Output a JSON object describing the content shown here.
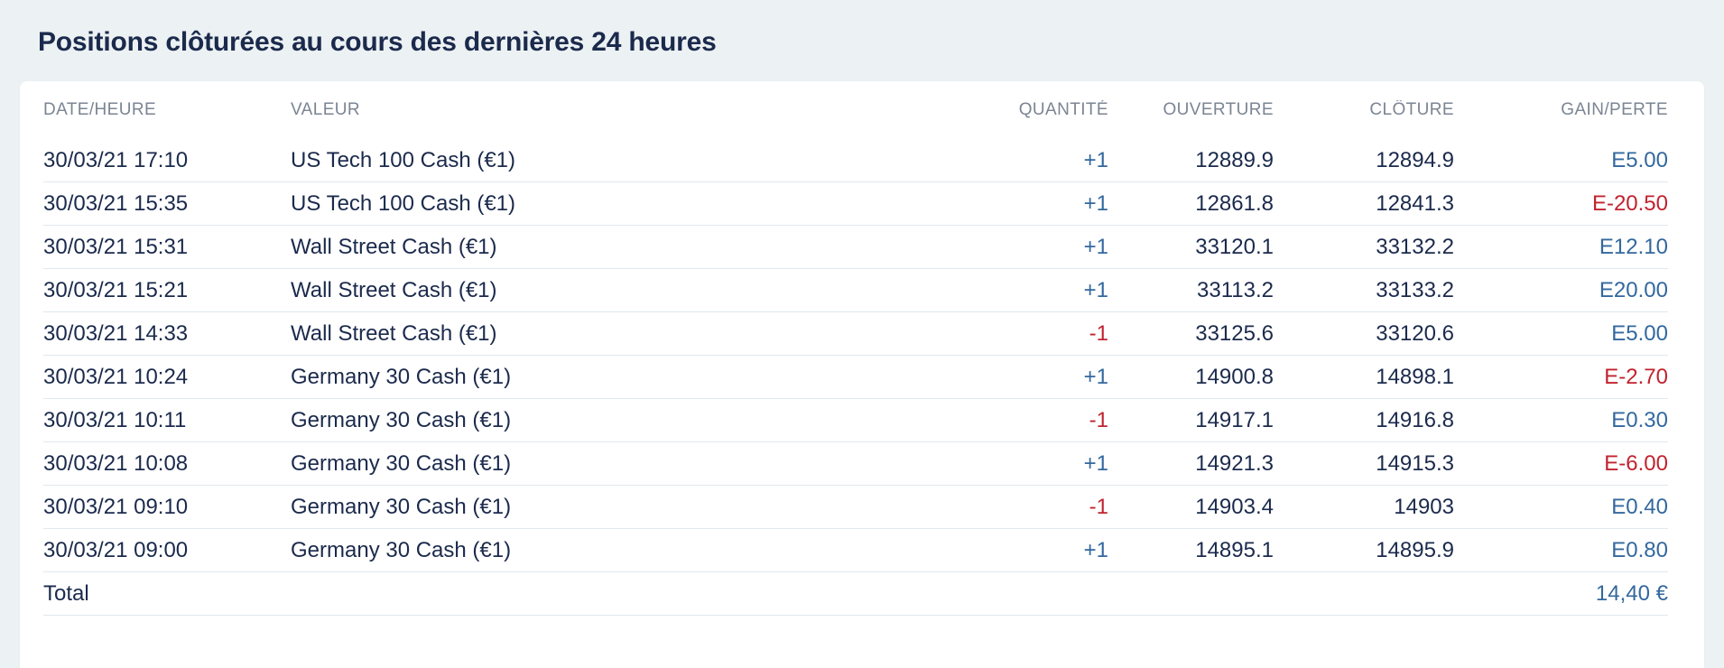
{
  "page": {
    "title": "Positions clôturées au cours des dernières 24 heures"
  },
  "colors": {
    "text_dark": "#1b2a4c",
    "header_gray": "#7b8593",
    "positive_blue": "#33689e",
    "negative_red": "#c1232f",
    "row_divider": "#dfe9ee",
    "page_background": "#ecf1f3",
    "card_background": "#ffffff"
  },
  "positions_table": {
    "columns": [
      {
        "key": "datetime",
        "label": "DATE/HEURE",
        "align": "left"
      },
      {
        "key": "valeur",
        "label": "VALEUR",
        "align": "left"
      },
      {
        "key": "quantity",
        "label": "QUANTITÉ",
        "align": "right"
      },
      {
        "key": "open",
        "label": "OUVERTURE",
        "align": "right"
      },
      {
        "key": "close",
        "label": "CLÔTURE",
        "align": "right"
      },
      {
        "key": "gain",
        "label": "GAIN/PERTE",
        "align": "right"
      }
    ],
    "rows": [
      {
        "datetime": "30/03/21 17:10",
        "valeur": "US Tech 100 Cash (€1)",
        "quantity": "+1",
        "quantity_sign": "positive",
        "open": "12889.9",
        "close": "12894.9",
        "gain": "E5.00",
        "gain_sign": "positive"
      },
      {
        "datetime": "30/03/21 15:35",
        "valeur": "US Tech 100 Cash (€1)",
        "quantity": "+1",
        "quantity_sign": "positive",
        "open": "12861.8",
        "close": "12841.3",
        "gain": "E-20.50",
        "gain_sign": "negative"
      },
      {
        "datetime": "30/03/21 15:31",
        "valeur": "Wall Street Cash (€1)",
        "quantity": "+1",
        "quantity_sign": "positive",
        "open": "33120.1",
        "close": "33132.2",
        "gain": "E12.10",
        "gain_sign": "positive"
      },
      {
        "datetime": "30/03/21 15:21",
        "valeur": "Wall Street Cash (€1)",
        "quantity": "+1",
        "quantity_sign": "positive",
        "open": "33113.2",
        "close": "33133.2",
        "gain": "E20.00",
        "gain_sign": "positive"
      },
      {
        "datetime": "30/03/21 14:33",
        "valeur": "Wall Street Cash (€1)",
        "quantity": "-1",
        "quantity_sign": "negative",
        "open": "33125.6",
        "close": "33120.6",
        "gain": "E5.00",
        "gain_sign": "positive"
      },
      {
        "datetime": "30/03/21 10:24",
        "valeur": "Germany 30 Cash (€1)",
        "quantity": "+1",
        "quantity_sign": "positive",
        "open": "14900.8",
        "close": "14898.1",
        "gain": "E-2.70",
        "gain_sign": "negative"
      },
      {
        "datetime": "30/03/21 10:11",
        "valeur": "Germany 30 Cash (€1)",
        "quantity": "-1",
        "quantity_sign": "negative",
        "open": "14917.1",
        "close": "14916.8",
        "gain": "E0.30",
        "gain_sign": "positive"
      },
      {
        "datetime": "30/03/21 10:08",
        "valeur": "Germany 30 Cash (€1)",
        "quantity": "+1",
        "quantity_sign": "positive",
        "open": "14921.3",
        "close": "14915.3",
        "gain": "E-6.00",
        "gain_sign": "negative"
      },
      {
        "datetime": "30/03/21 09:10",
        "valeur": "Germany 30 Cash (€1)",
        "quantity": "-1",
        "quantity_sign": "negative",
        "open": "14903.4",
        "close": "14903",
        "gain": "E0.40",
        "gain_sign": "positive"
      },
      {
        "datetime": "30/03/21 09:00",
        "valeur": "Germany 30 Cash (€1)",
        "quantity": "+1",
        "quantity_sign": "positive",
        "open": "14895.1",
        "close": "14895.9",
        "gain": "E0.80",
        "gain_sign": "positive"
      }
    ],
    "total": {
      "label": "Total",
      "value": "14,40 €"
    }
  }
}
